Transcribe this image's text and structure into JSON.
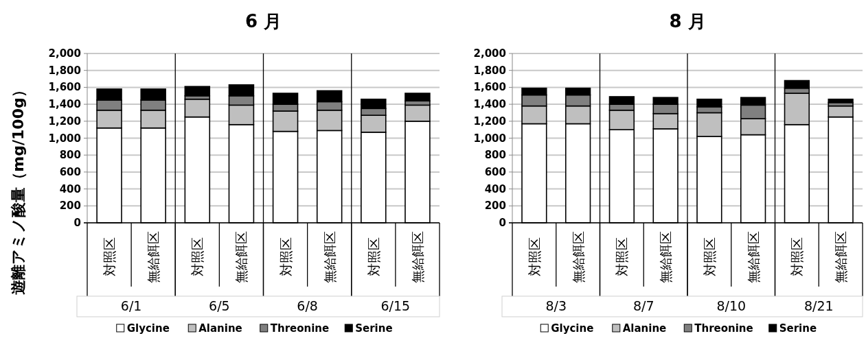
{
  "chart_data": [
    {
      "type": "bar",
      "stacked": true,
      "title": "6 月",
      "ylabel": "遊離アミノ酸量（mg/100g）",
      "categories": [
        "対照区",
        "無給餌区",
        "対照区",
        "無給餌区",
        "対照区",
        "無給餌区",
        "対照区",
        "無給餌区"
      ],
      "annotations": [
        "6/1",
        "6/5",
        "6/8",
        "6/15"
      ],
      "series": [
        {
          "name": "Glycine",
          "color": "#ffffff",
          "values": [
            1120,
            1120,
            1250,
            1160,
            1080,
            1090,
            1070,
            1200
          ]
        },
        {
          "name": "Alanine",
          "color": "#bfbfbf",
          "values": [
            210,
            210,
            210,
            230,
            240,
            240,
            200,
            190
          ]
        },
        {
          "name": "Threonine",
          "color": "#808080",
          "values": [
            120,
            120,
            40,
            110,
            80,
            100,
            80,
            50
          ]
        },
        {
          "name": "Serine",
          "color": "#000000",
          "values": [
            130,
            130,
            110,
            130,
            130,
            130,
            110,
            90
          ]
        }
      ],
      "ylim": [
        0,
        2000
      ],
      "yticks": [
        0,
        200,
        400,
        600,
        800,
        {
          "value": 1000,
          "label": "1,000"
        },
        {
          "value": 1200,
          "label": "1,200"
        },
        {
          "value": 1400,
          "label": "1,400"
        },
        {
          "value": 1600,
          "label": "1,600"
        },
        {
          "value": 1800,
          "label": "1,800"
        },
        {
          "value": 2000,
          "label": "2,000"
        }
      ],
      "grid": "y",
      "legend": "bottom"
    },
    {
      "type": "bar",
      "stacked": true,
      "title": "8 月",
      "categories": [
        "対照区",
        "無給餌区",
        "対照区",
        "無給餌区",
        "対照区",
        "無給餌区",
        "対照区",
        "無給餌区"
      ],
      "annotations": [
        "8/3",
        "8/7",
        "8/10",
        "8/21"
      ],
      "series": [
        {
          "name": "Glycine",
          "color": "#ffffff",
          "values": [
            1170,
            1170,
            1100,
            1110,
            1020,
            1040,
            1160,
            1250
          ]
        },
        {
          "name": "Alanine",
          "color": "#bfbfbf",
          "values": [
            210,
            210,
            230,
            180,
            280,
            190,
            370,
            130
          ]
        },
        {
          "name": "Threonine",
          "color": "#808080",
          "values": [
            130,
            130,
            70,
            110,
            70,
            160,
            60,
            40
          ]
        },
        {
          "name": "Serine",
          "color": "#000000",
          "values": [
            80,
            80,
            90,
            80,
            90,
            90,
            90,
            40
          ]
        }
      ],
      "ylim": [
        0,
        2000
      ],
      "yticks": [
        0,
        200,
        400,
        600,
        800,
        {
          "value": 1000,
          "label": "1,000"
        },
        {
          "value": 1200,
          "label": "1,200"
        },
        {
          "value": 1400,
          "label": "1,400"
        },
        {
          "value": 1600,
          "label": "1,600"
        },
        {
          "value": 1800,
          "label": "1,800"
        },
        {
          "value": 2000,
          "label": "2,000"
        }
      ],
      "grid": "y",
      "legend": "bottom"
    }
  ]
}
